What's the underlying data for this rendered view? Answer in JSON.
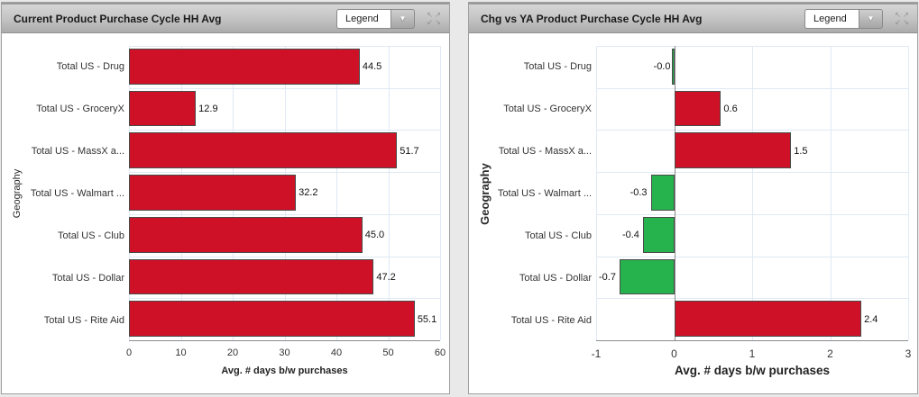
{
  "legend_label": "Legend",
  "icons": {
    "dropdown_arrow": "▼",
    "expand_arrows": [
      "↖",
      "↗",
      "↙",
      "↘"
    ]
  },
  "colors": {
    "grid": "#dfe9f4",
    "axis": "#8c8c8c",
    "positive_bar": "#ce1126",
    "negative_bar": "#26b34e"
  },
  "chart_data": [
    {
      "type": "bar",
      "orientation": "horizontal",
      "title": "Current Product Purchase Cycle HH Avg",
      "categories": [
        "Total US - Drug",
        "Total US - GroceryX",
        "Total US - MassX a...",
        "Total US - Walmart ...",
        "Total US - Club",
        "Total US - Dollar",
        "Total US - Rite Aid"
      ],
      "values": [
        44.5,
        12.9,
        51.7,
        32.2,
        45.0,
        47.2,
        55.1
      ],
      "value_labels": [
        "44.5",
        "12.9",
        "51.7",
        "32.2",
        "45.0",
        "47.2",
        "55.1"
      ],
      "xlabel": "Avg. # days b/w purchases",
      "ylabel": "Geography",
      "xlim": [
        0,
        60
      ],
      "xticks": [
        0,
        10,
        20,
        30,
        40,
        50,
        60
      ],
      "xtick_labels": [
        "0",
        "10",
        "20",
        "30",
        "40",
        "50",
        "60"
      ],
      "grid": true,
      "legend_position": "header-dropdown",
      "positive_color": "#ce1126",
      "negative_color": "#26b34e"
    },
    {
      "type": "bar",
      "orientation": "horizontal",
      "title": "Chg vs YA Product Purchase Cycle HH Avg",
      "categories": [
        "Total US - Drug",
        "Total US - GroceryX",
        "Total US - MassX a...",
        "Total US - Walmart ...",
        "Total US - Club",
        "Total US - Dollar",
        "Total US - Rite Aid"
      ],
      "values": [
        -0.0,
        0.6,
        1.5,
        -0.3,
        -0.4,
        -0.7,
        2.4
      ],
      "value_labels": [
        "-0.0",
        "0.6",
        "1.5",
        "-0.3",
        "-0.4",
        "-0.7",
        "2.4"
      ],
      "xlabel": "Avg. # days b/w purchases",
      "ylabel": "Geography",
      "xlim": [
        -1,
        3
      ],
      "xticks": [
        -1,
        0,
        1,
        2,
        3
      ],
      "xtick_labels": [
        "-1",
        "0",
        "1",
        "2",
        "3"
      ],
      "grid": true,
      "legend_position": "header-dropdown",
      "positive_color": "#ce1126",
      "negative_color": "#26b34e"
    }
  ]
}
